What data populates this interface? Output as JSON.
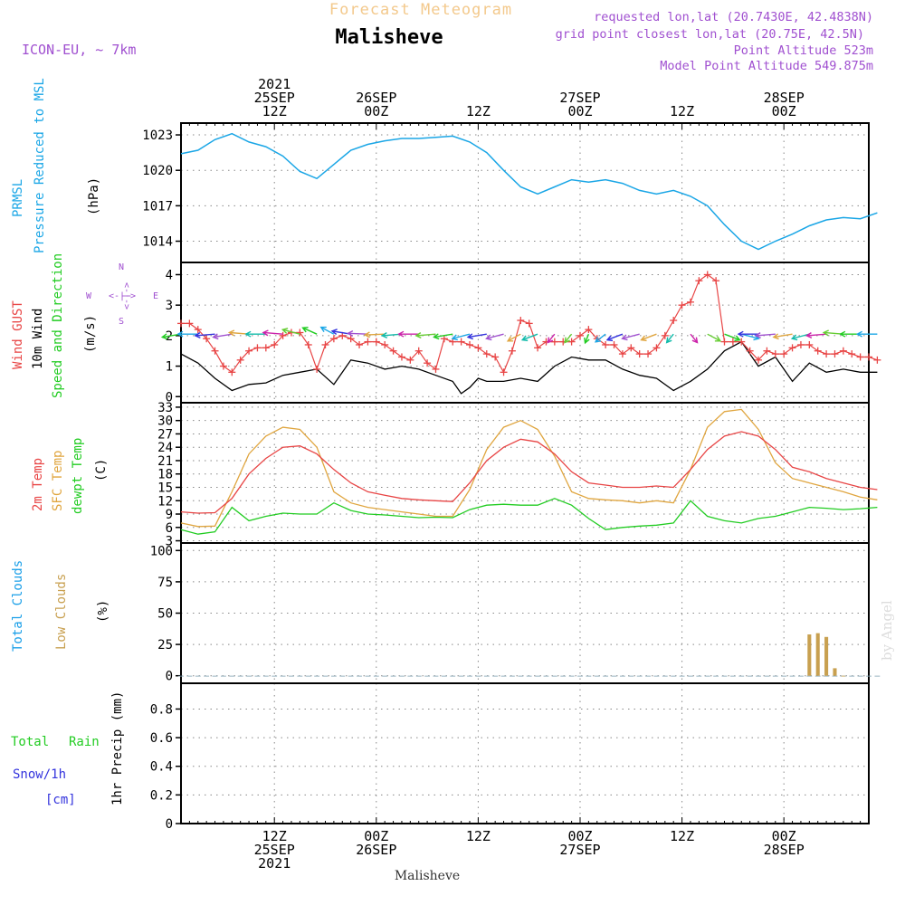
{
  "header": {
    "title": "Forecast Meteogram",
    "location": "Malisheve",
    "model": "ICON-EU, ~ 7km",
    "requested": "requested lon,lat (20.7430E, 42.4838N)",
    "grid_point": "grid point closest lon,lat (20.75E, 42.5N)",
    "point_altitude": "Point Altitude 523m",
    "model_altitude": "Model Point Altitude 549.875m",
    "footer_location": "Malisheve",
    "credit": "by Angel"
  },
  "colors": {
    "pressure": "#1aa6e6",
    "gust": "#e84545",
    "wind": "#000000",
    "sfc_temp": "#e0a640",
    "dewpt": "#22cc22",
    "clouds_total": "#1a9fe8",
    "clouds_low": "#c8a050",
    "rain": "#22cc22",
    "snow": "#3333dd",
    "purple": "#a050d0"
  },
  "time_axis": {
    "x_range": [
      "2021-09-25T01:00Z",
      "2021-09-28T10:00Z"
    ],
    "top_labels": [
      {
        "time": "2021-09-25T12:00Z",
        "lines": [
          "2021",
          "25SEP",
          "12Z"
        ]
      },
      {
        "time": "2021-09-26T00:00Z",
        "lines": [
          "26SEP",
          "00Z"
        ]
      },
      {
        "time": "2021-09-26T12:00Z",
        "lines": [
          "12Z"
        ]
      },
      {
        "time": "2021-09-27T00:00Z",
        "lines": [
          "27SEP",
          "00Z"
        ]
      },
      {
        "time": "2021-09-27T12:00Z",
        "lines": [
          "12Z"
        ]
      },
      {
        "time": "2021-09-28T00:00Z",
        "lines": [
          "28SEP",
          "00Z"
        ]
      }
    ],
    "bottom_labels": [
      {
        "time": "2021-09-25T12:00Z",
        "lines": [
          "12Z",
          "25SEP",
          "2021"
        ]
      },
      {
        "time": "2021-09-26T00:00Z",
        "lines": [
          "00Z",
          "26SEP"
        ]
      },
      {
        "time": "2021-09-26T12:00Z",
        "lines": [
          "12Z"
        ]
      },
      {
        "time": "2021-09-27T00:00Z",
        "lines": [
          "00Z",
          "27SEP"
        ]
      },
      {
        "time": "2021-09-27T12:00Z",
        "lines": [
          "12Z"
        ]
      },
      {
        "time": "2021-09-28T00:00Z",
        "lines": [
          "00Z",
          "28SEP"
        ]
      }
    ]
  },
  "panels": {
    "pressure": {
      "labels": [
        "PRMSL",
        "Pressure Reduced to MSL"
      ],
      "unit": "(hPa)",
      "yticks": [
        1014,
        1017,
        1020,
        1023
      ],
      "ylim": [
        1012.2,
        1024.0
      ]
    },
    "wind": {
      "labels": [
        "Wind GUST",
        "10m Wind",
        "Speed and Direction"
      ],
      "unit": "(m/s)",
      "compass": {
        "n": "N",
        "s": "S",
        "w": "W",
        "e": "E",
        "arrow_h": "<-|->",
        "arrow_v": "<-|->"
      },
      "yticks": [
        0,
        1,
        2,
        3,
        4
      ],
      "ylim": [
        -0.2,
        4.4
      ]
    },
    "temp": {
      "labels": [
        "2m Temp",
        "SFC Temp",
        "dewpt Temp"
      ],
      "unit": "(C)",
      "yticks": [
        3,
        6,
        9,
        12,
        15,
        18,
        21,
        24,
        27,
        30,
        33
      ],
      "ylim": [
        2.5,
        34
      ]
    },
    "clouds": {
      "labels": [
        "Total Clouds",
        "Low Clouds"
      ],
      "unit": "(%)",
      "yticks": [
        0,
        25,
        50,
        75,
        100
      ],
      "ylim": [
        -6,
        106
      ]
    },
    "precip": {
      "labels": [
        "Total",
        "Rain",
        "Snow/1h",
        "[cm]"
      ],
      "unit": "1hr Precip (mm)",
      "yticks": [
        "0",
        "0.2",
        "0.4",
        "0.6",
        "0.8"
      ],
      "ylim": [
        0,
        0.98
      ]
    }
  },
  "chart_data": {
    "type": "line",
    "x_unit": "hours from 2021-09-25T01:00Z",
    "pressure_hpa": {
      "x": [
        0,
        2,
        4,
        6,
        8,
        10,
        12,
        14,
        16,
        18,
        20,
        22,
        24,
        26,
        28,
        30,
        32,
        34,
        36,
        38,
        40,
        42,
        44,
        46,
        48,
        50,
        52,
        54,
        56,
        58,
        60,
        62,
        64,
        66,
        68,
        70,
        72,
        74,
        76,
        78,
        80,
        82
      ],
      "y": [
        1021.4,
        1021.7,
        1022.6,
        1023.1,
        1022.4,
        1022.0,
        1021.2,
        1019.9,
        1019.3,
        1020.5,
        1021.7,
        1022.2,
        1022.5,
        1022.7,
        1022.7,
        1022.8,
        1022.9,
        1022.4,
        1021.5,
        1020.0,
        1018.6,
        1018.0,
        1018.6,
        1019.2,
        1019.0,
        1019.2,
        1018.9,
        1018.3,
        1018.0,
        1018.3,
        1017.8,
        1017.0,
        1015.4,
        1014.0,
        1013.3,
        1014.0,
        1014.6,
        1015.3,
        1015.8,
        1016.0,
        1015.9,
        1016.4
      ]
    },
    "gust_ms": {
      "x": [
        0,
        1,
        2,
        3,
        4,
        5,
        6,
        7,
        8,
        9,
        10,
        11,
        12,
        13,
        14,
        15,
        16,
        17,
        18,
        19,
        20,
        21,
        22,
        23,
        24,
        25,
        26,
        27,
        28,
        29,
        30,
        31,
        32,
        33,
        34,
        35,
        36,
        37,
        38,
        39,
        40,
        41,
        42,
        43,
        44,
        45,
        46,
        47,
        48,
        49,
        50,
        51,
        52,
        53,
        54,
        55,
        56,
        57,
        58,
        59,
        60,
        61,
        62,
        63,
        64,
        65,
        66,
        67,
        68,
        69,
        70,
        71,
        72,
        73,
        74,
        75,
        76,
        77,
        78,
        79,
        80,
        81,
        82
      ],
      "y": [
        2.4,
        2.4,
        2.2,
        1.9,
        1.5,
        1.0,
        0.8,
        1.2,
        1.5,
        1.6,
        1.6,
        1.7,
        2.0,
        2.1,
        2.1,
        1.7,
        0.9,
        1.7,
        1.9,
        2.0,
        1.9,
        1.7,
        1.8,
        1.8,
        1.7,
        1.5,
        1.3,
        1.2,
        1.5,
        1.1,
        0.9,
        1.9,
        1.8,
        1.8,
        1.7,
        1.6,
        1.4,
        1.3,
        0.8,
        1.5,
        2.5,
        2.4,
        1.6,
        1.8,
        1.8,
        1.8,
        1.8,
        2.0,
        2.2,
        1.9,
        1.7,
        1.7,
        1.4,
        1.6,
        1.4,
        1.4,
        1.6,
        2.0,
        2.5,
        3.0,
        3.1,
        3.8,
        4.0,
        3.8,
        1.8,
        1.8,
        1.8,
        1.5,
        1.2,
        1.5,
        1.4,
        1.4,
        1.6,
        1.7,
        1.7,
        1.5,
        1.4,
        1.4,
        1.5,
        1.4,
        1.3,
        1.3,
        1.2
      ]
    },
    "wind_ms": {
      "x": [
        0,
        2,
        4,
        6,
        8,
        10,
        12,
        14,
        16,
        18,
        20,
        22,
        24,
        26,
        28,
        30,
        32,
        33,
        34,
        35,
        36,
        37,
        38,
        40,
        42,
        44,
        46,
        48,
        50,
        52,
        54,
        56,
        58,
        60,
        62,
        64,
        66,
        68,
        70,
        72,
        74,
        76,
        78,
        80,
        82
      ],
      "y": [
        1.4,
        1.1,
        0.6,
        0.2,
        0.4,
        0.45,
        0.7,
        0.8,
        0.9,
        0.4,
        1.2,
        1.1,
        0.9,
        1.0,
        0.9,
        0.7,
        0.5,
        0.1,
        0.3,
        0.6,
        0.5,
        0.5,
        0.5,
        0.6,
        0.5,
        1.0,
        1.3,
        1.2,
        1.2,
        0.9,
        0.7,
        0.6,
        0.2,
        0.5,
        0.9,
        1.5,
        1.8,
        1.0,
        1.3,
        0.5,
        1.1,
        0.8,
        0.9,
        0.8,
        0.8
      ]
    },
    "wind_dir_deg": {
      "x": [
        0,
        2,
        4,
        6,
        8,
        10,
        12,
        14,
        16,
        18,
        20,
        22,
        24,
        26,
        28,
        30,
        32,
        34,
        36,
        38,
        40,
        42,
        44,
        46,
        48,
        50,
        52,
        54,
        56,
        58,
        60,
        62,
        64,
        66,
        68,
        70,
        72,
        74,
        76,
        78,
        80,
        82
      ],
      "deg": [
        110,
        90,
        100,
        110,
        80,
        90,
        80,
        60,
        45,
        40,
        70,
        85,
        95,
        100,
        90,
        100,
        110,
        120,
        110,
        120,
        140,
        130,
        160,
        160,
        170,
        150,
        130,
        120,
        130,
        160,
        200,
        220,
        230,
        240,
        90,
        100,
        110,
        120,
        100,
        80,
        90,
        90
      ]
    },
    "t2m_c": {
      "x": [
        0,
        2,
        4,
        6,
        8,
        10,
        12,
        14,
        16,
        18,
        20,
        22,
        24,
        26,
        28,
        30,
        32,
        34,
        36,
        38,
        40,
        42,
        44,
        46,
        48,
        50,
        52,
        54,
        56,
        58,
        60,
        62,
        64,
        66,
        68,
        70,
        72,
        74,
        76,
        78,
        80,
        82
      ],
      "y": [
        9.5,
        9.2,
        9.3,
        12.5,
        18,
        21.5,
        24.0,
        24.3,
        22.5,
        19.0,
        16.0,
        14.0,
        13.2,
        12.5,
        12.2,
        12.0,
        11.8,
        16.0,
        21.0,
        24.0,
        25.8,
        25.2,
        22.5,
        18.5,
        16.0,
        15.5,
        15.0,
        15.0,
        15.3,
        15.0,
        19.0,
        23.5,
        26.5,
        27.5,
        26.5,
        23.5,
        19.5,
        18.5,
        17.0,
        16.0,
        15.0,
        14.5
      ]
    },
    "tsfc_c": {
      "x": [
        0,
        2,
        4,
        6,
        8,
        10,
        12,
        14,
        16,
        18,
        20,
        22,
        24,
        26,
        28,
        30,
        32,
        34,
        36,
        38,
        40,
        42,
        44,
        46,
        48,
        50,
        52,
        54,
        56,
        58,
        60,
        62,
        64,
        66,
        68,
        70,
        72,
        74,
        76,
        78,
        80,
        82
      ],
      "y": [
        7.0,
        6.2,
        6.3,
        14.0,
        22.5,
        26.5,
        28.5,
        28.0,
        24.0,
        14.0,
        11.5,
        10.5,
        10.0,
        9.5,
        9.0,
        8.5,
        8.5,
        14.5,
        23.5,
        28.5,
        30.0,
        28.0,
        22.0,
        14.0,
        12.5,
        12.2,
        12.0,
        11.5,
        12.0,
        11.5,
        19.0,
        28.5,
        32.0,
        32.5,
        28.0,
        20.5,
        17.0,
        16.0,
        15.0,
        14.0,
        12.8,
        12.2
      ]
    },
    "dewpt_c": {
      "x": [
        0,
        2,
        4,
        6,
        8,
        10,
        12,
        14,
        16,
        18,
        20,
        22,
        24,
        26,
        28,
        30,
        32,
        34,
        36,
        38,
        40,
        42,
        44,
        46,
        48,
        50,
        52,
        54,
        56,
        58,
        60,
        62,
        64,
        66,
        68,
        70,
        72,
        74,
        76,
        78,
        80,
        82
      ],
      "y": [
        5.5,
        4.5,
        5.0,
        10.5,
        7.5,
        8.5,
        9.2,
        9.0,
        9.0,
        11.5,
        9.8,
        9.0,
        8.8,
        8.5,
        8.2,
        8.3,
        8.2,
        10.0,
        11.0,
        11.2,
        11.0,
        11.0,
        12.5,
        11.0,
        8.0,
        5.5,
        6.0,
        6.3,
        6.5,
        7.0,
        12.0,
        8.5,
        7.5,
        7.0,
        8.0,
        8.5,
        9.5,
        10.5,
        10.3,
        10.0,
        10.2,
        10.5
      ]
    },
    "clouds_total_pct": {
      "x": [
        0,
        1,
        2,
        3,
        4,
        5,
        6,
        7,
        8,
        9,
        10,
        11,
        12,
        13,
        14,
        15,
        16,
        17,
        18,
        19,
        20,
        21,
        22,
        23,
        24,
        25,
        26,
        27,
        28,
        29,
        30,
        31,
        32,
        33,
        34,
        35,
        36,
        37,
        38,
        39,
        40,
        41,
        42,
        43,
        44,
        45,
        46,
        47,
        48,
        49,
        50,
        51,
        52,
        53,
        54,
        55,
        56,
        57,
        58,
        59,
        60,
        61,
        62,
        63,
        64,
        65,
        66,
        67,
        68,
        69,
        70,
        71,
        72,
        73,
        74,
        75,
        76,
        77,
        78,
        79,
        80,
        81,
        82
      ],
      "y": [
        0,
        0,
        0,
        0,
        0,
        0,
        0,
        0,
        0,
        0,
        0,
        0,
        0,
        0,
        0,
        0,
        0,
        0,
        0,
        0,
        0,
        0,
        0,
        0,
        0,
        0,
        0,
        0,
        0,
        0,
        0,
        0,
        0,
        0,
        0,
        0,
        0,
        0,
        0,
        0,
        0,
        0,
        0,
        0,
        0,
        0,
        0,
        0,
        0,
        0,
        0,
        0,
        0,
        0,
        0,
        0,
        0,
        0,
        0,
        0,
        0,
        0,
        0,
        0,
        0,
        0,
        0,
        0,
        0,
        0,
        0,
        0,
        0,
        0,
        0,
        0,
        0,
        0,
        0,
        0,
        0,
        0,
        0
      ]
    },
    "clouds_low_pct": {
      "x": [
        74,
        75,
        76,
        77,
        78
      ],
      "y": [
        33,
        34,
        31,
        6,
        0
      ]
    },
    "precip_mm": {
      "x": [],
      "y": []
    }
  }
}
